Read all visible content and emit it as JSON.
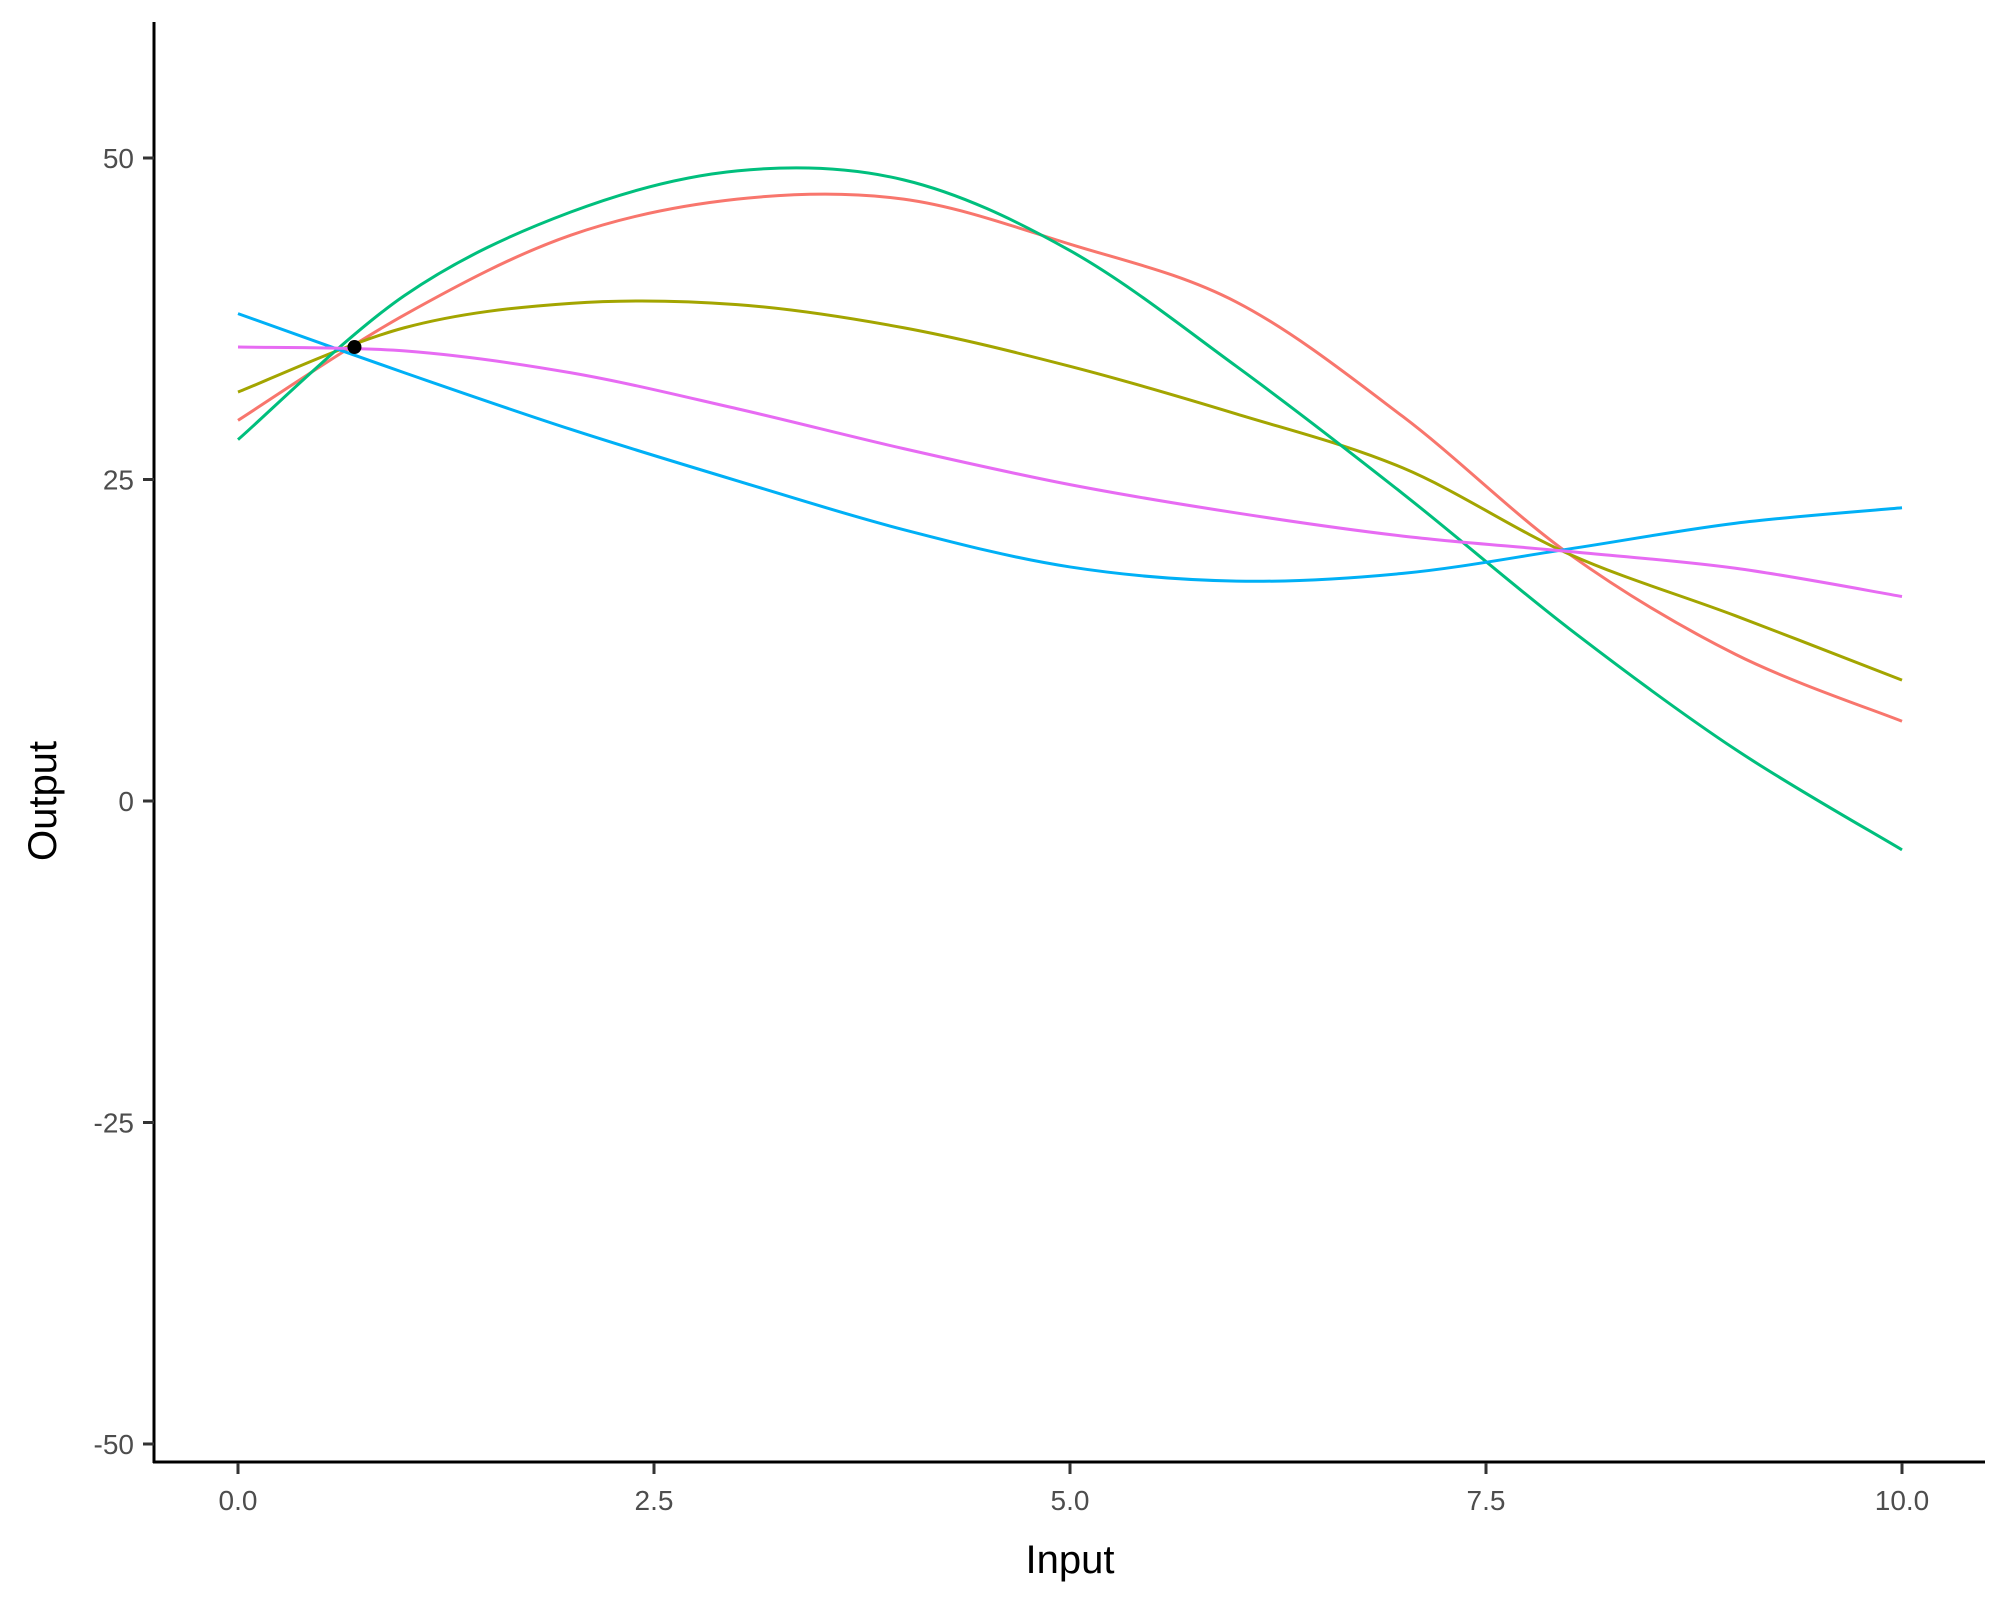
{
  "chart_data": {
    "type": "line",
    "title": "",
    "xlabel": "Input",
    "ylabel": "Output",
    "xlim": [
      -0.5,
      10.5
    ],
    "ylim": [
      -50,
      60
    ],
    "grid": false,
    "legend": "none",
    "x_ticks": [
      "0.0",
      "2.5",
      "5.0",
      "7.5",
      "10.0"
    ],
    "x_tick_values": [
      0,
      2.5,
      5,
      7.5,
      10
    ],
    "y_ticks": [
      "-50",
      "-25",
      "0",
      "25",
      "50"
    ],
    "y_tick_values": [
      -50,
      -25,
      0,
      25,
      50
    ],
    "x": [
      0,
      1,
      2,
      3,
      4,
      5,
      6,
      7,
      8,
      9,
      10
    ],
    "series": [
      {
        "color": "#F8766D",
        "values": [
          29.6,
          37.8,
          44.0,
          46.8,
          46.8,
          43.3,
          38.8,
          29.9,
          19.2,
          11.4,
          6.2
        ]
      },
      {
        "color": "#A3A500",
        "values": [
          31.8,
          36.8,
          38.7,
          38.6,
          36.8,
          33.8,
          30.1,
          25.9,
          19.2,
          14.4,
          9.4
        ]
      },
      {
        "color": "#00BF7D",
        "values": [
          28.1,
          39.3,
          45.8,
          49.0,
          48.3,
          42.8,
          33.8,
          23.9,
          13.4,
          4.0,
          -3.8
        ]
      },
      {
        "color": "#00B0F6",
        "values": [
          37.9,
          33.3,
          28.9,
          24.9,
          21.1,
          18.2,
          17.1,
          17.7,
          19.6,
          21.6,
          22.8
        ]
      },
      {
        "color": "#E76BF3",
        "values": [
          35.3,
          35.0,
          33.3,
          30.5,
          27.4,
          24.6,
          22.4,
          20.6,
          19.4,
          18.1,
          15.9
        ]
      }
    ],
    "point": {
      "x": 0.7,
      "y": 35.3,
      "color": "#000000"
    }
  }
}
